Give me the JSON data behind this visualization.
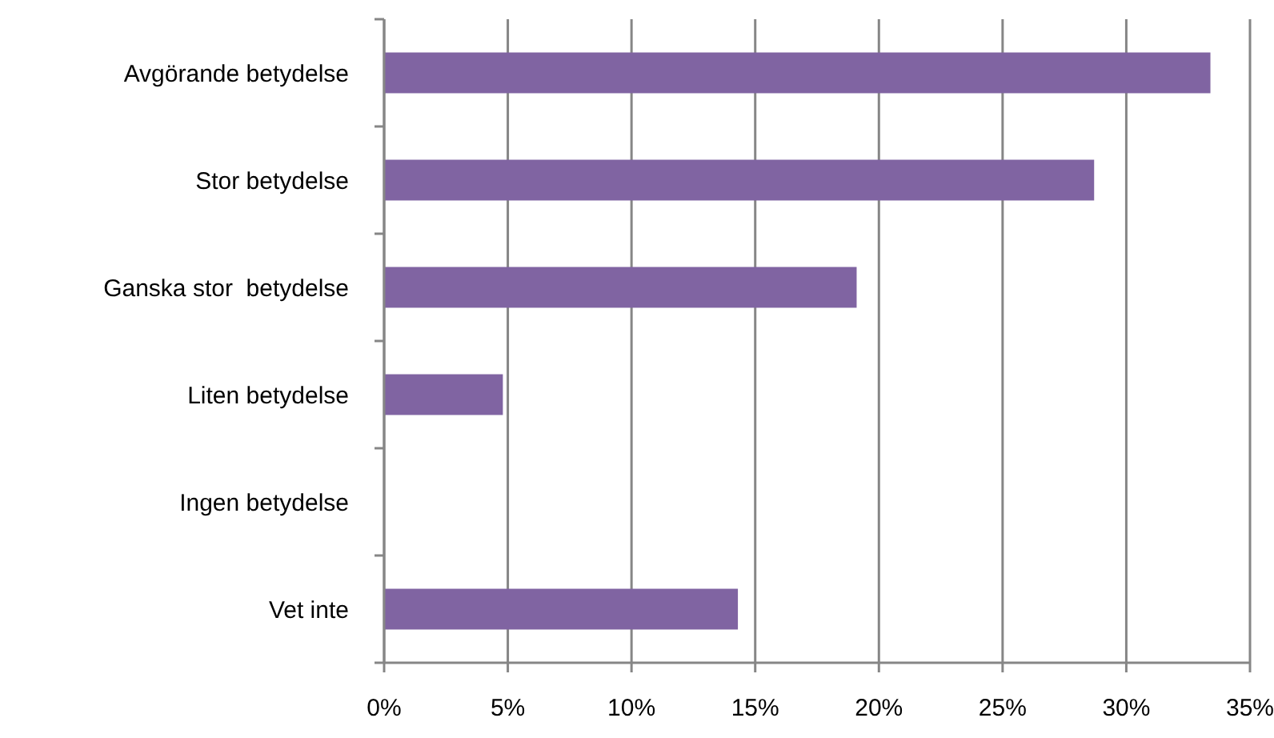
{
  "chart_data": {
    "type": "bar",
    "orientation": "horizontal",
    "categories": [
      "Avgörande betydelse",
      "Stor betydelse",
      "Ganska stor  betydelse",
      "Liten betydelse",
      "Ingen betydelse",
      "Vet inte"
    ],
    "values": [
      33.4,
      28.7,
      19.1,
      4.8,
      0,
      14.3
    ],
    "color": "#8064a2",
    "xlim": [
      0,
      35
    ],
    "xticks": [
      {
        "value": 0,
        "label": "0%"
      },
      {
        "value": 5,
        "label": "5%"
      },
      {
        "value": 10,
        "label": "10%"
      },
      {
        "value": 15,
        "label": "15%"
      },
      {
        "value": 20,
        "label": "20%"
      },
      {
        "value": 25,
        "label": "25%"
      },
      {
        "value": 30,
        "label": "30%"
      },
      {
        "value": 35,
        "label": "35%"
      }
    ],
    "grid": "x"
  }
}
